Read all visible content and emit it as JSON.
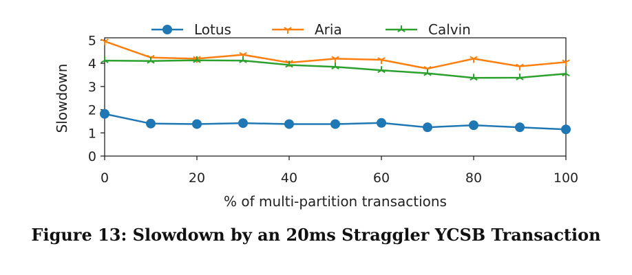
{
  "chart_data": {
    "type": "line",
    "xlabel": "% of multi-partition transactions",
    "ylabel": "Slowdown",
    "x": [
      0,
      10,
      20,
      30,
      40,
      50,
      60,
      70,
      80,
      90,
      100
    ],
    "xlim": [
      0,
      100
    ],
    "ylim": [
      0,
      5.1
    ],
    "xticks": [
      "0",
      "20",
      "40",
      "60",
      "80",
      "100"
    ],
    "yticks": [
      "0",
      "1",
      "2",
      "3",
      "4",
      "5"
    ],
    "grid": false,
    "legend_position": "top, outside plot, single row",
    "series": [
      {
        "name": "Lotus",
        "color": "#1f77b4",
        "marker": "circle",
        "values": [
          1.82,
          1.4,
          1.38,
          1.42,
          1.38,
          1.38,
          1.43,
          1.24,
          1.33,
          1.24,
          1.15
        ]
      },
      {
        "name": "Aria",
        "color": "#ff7f0e",
        "marker": "tri-down",
        "values": [
          4.95,
          4.25,
          4.2,
          4.37,
          4.03,
          4.2,
          4.15,
          3.77,
          4.2,
          3.87,
          4.05
        ]
      },
      {
        "name": "Calvin",
        "color": "#2ca02c",
        "marker": "tri-up",
        "values": [
          4.12,
          4.1,
          4.13,
          4.12,
          3.93,
          3.85,
          3.7,
          3.57,
          3.37,
          3.38,
          3.55
        ]
      }
    ]
  },
  "caption": "Figure 13: Slowdown by an 20ms Straggler YCSB Transaction"
}
